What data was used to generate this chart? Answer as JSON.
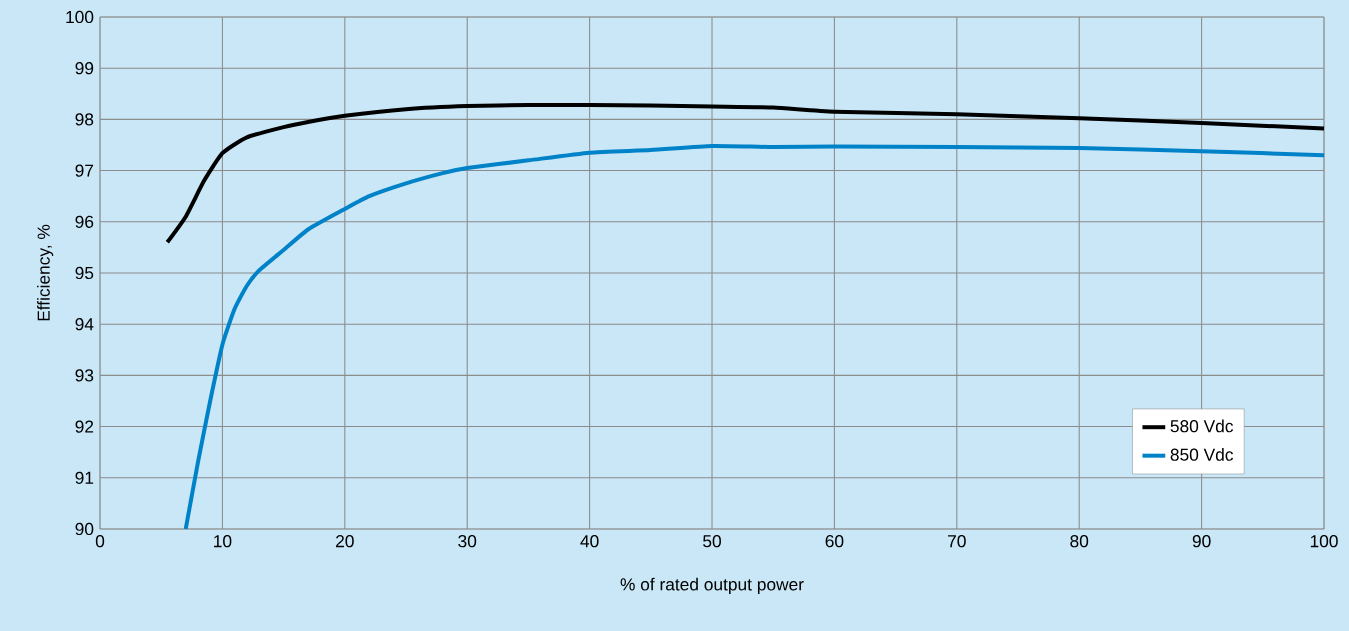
{
  "chart_data": {
    "type": "line",
    "xlabel": "% of rated output power",
    "ylabel": "Efficiency, %",
    "xlim": [
      0,
      100
    ],
    "ylim": [
      90,
      100
    ],
    "xticks": [
      0,
      10,
      20,
      30,
      40,
      50,
      60,
      70,
      80,
      90,
      100
    ],
    "yticks": [
      90,
      91,
      92,
      93,
      94,
      95,
      96,
      97,
      98,
      99,
      100
    ],
    "grid": true,
    "legend": "bottom right",
    "marker": "none",
    "line_style": "solid",
    "series": [
      {
        "name": "580 Vdc",
        "color": "#000000",
        "x": [
          5.5,
          7,
          8.5,
          10,
          12,
          15,
          17,
          20,
          25,
          30,
          35,
          40,
          45,
          50,
          55,
          60,
          70,
          80,
          90,
          100
        ],
        "values": [
          95.6,
          96.1,
          96.8,
          97.34,
          97.65,
          97.85,
          97.95,
          98.07,
          98.2,
          98.26,
          98.28,
          98.28,
          98.27,
          98.25,
          98.23,
          98.15,
          98.1,
          98.02,
          97.93,
          97.82
        ]
      },
      {
        "name": "850 Vdc",
        "color": "#0082c8",
        "x": [
          7,
          8,
          9,
          10,
          11,
          12,
          13,
          15,
          17,
          20,
          22,
          25,
          28,
          30,
          35,
          40,
          45,
          50,
          55,
          60,
          70,
          80,
          90,
          100
        ],
        "values": [
          90,
          91.3,
          92.5,
          93.6,
          94.3,
          94.75,
          95.05,
          95.45,
          95.85,
          96.25,
          96.5,
          96.75,
          96.95,
          97.05,
          97.2,
          97.35,
          97.4,
          97.48,
          97.46,
          97.47,
          97.46,
          97.44,
          97.38,
          97.3
        ]
      }
    ]
  }
}
